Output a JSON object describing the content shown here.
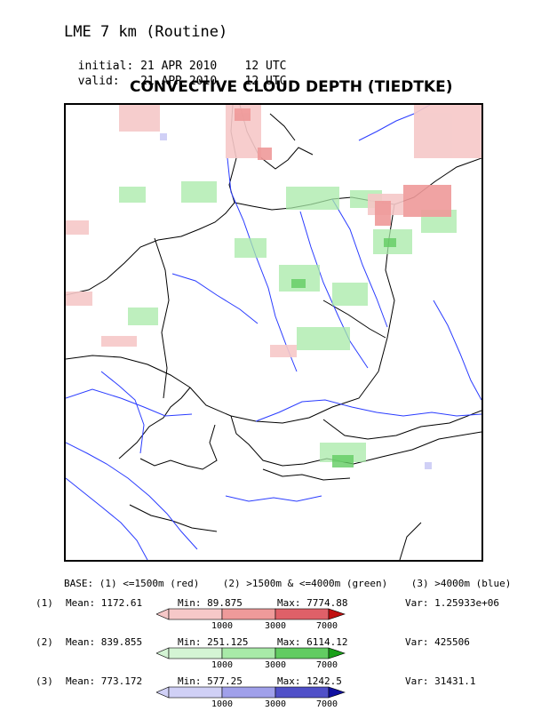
{
  "header": {
    "model_title": "LME 7 km (Routine)",
    "initial_label": "initial:",
    "initial_value": "21 APR 2010    12 UTC",
    "valid_label": "valid:",
    "valid_value": "21 APR 2010    12 UTC",
    "field_title": "CONVECTIVE CLOUD DEPTH (TIEDTKE)"
  },
  "legend": {
    "base_line": "BASE: (1) <=1500m (red)    (2) >1500m & <=4000m (green)    (3) >4000m (blue)",
    "rows": [
      {
        "id": "(1)",
        "mean": "Mean: 1172.61",
        "min": "Min: 89.875",
        "max": "Max: 7774.88",
        "var": "Var: 1.25933e+06",
        "colors": [
          "#f6c8c8",
          "#ef9a9a",
          "#df6068",
          "#c01010"
        ]
      },
      {
        "id": "(2)",
        "mean": "Mean: 839.855",
        "min": "Min: 251.125",
        "max": "Max: 6114.12",
        "var": "Var: 425506",
        "colors": [
          "#d4f4d4",
          "#a8eaa8",
          "#62cc62",
          "#1aa01a"
        ]
      },
      {
        "id": "(3)",
        "mean": "Mean: 773.172",
        "min": "Min: 577.25",
        "max": "Max: 1242.5",
        "var": "Var: 31431.1",
        "colors": [
          "#d0d0f6",
          "#a0a0ea",
          "#5050c8",
          "#1010a0"
        ]
      }
    ],
    "ticks": [
      "1000",
      "3000",
      "7000"
    ]
  }
}
